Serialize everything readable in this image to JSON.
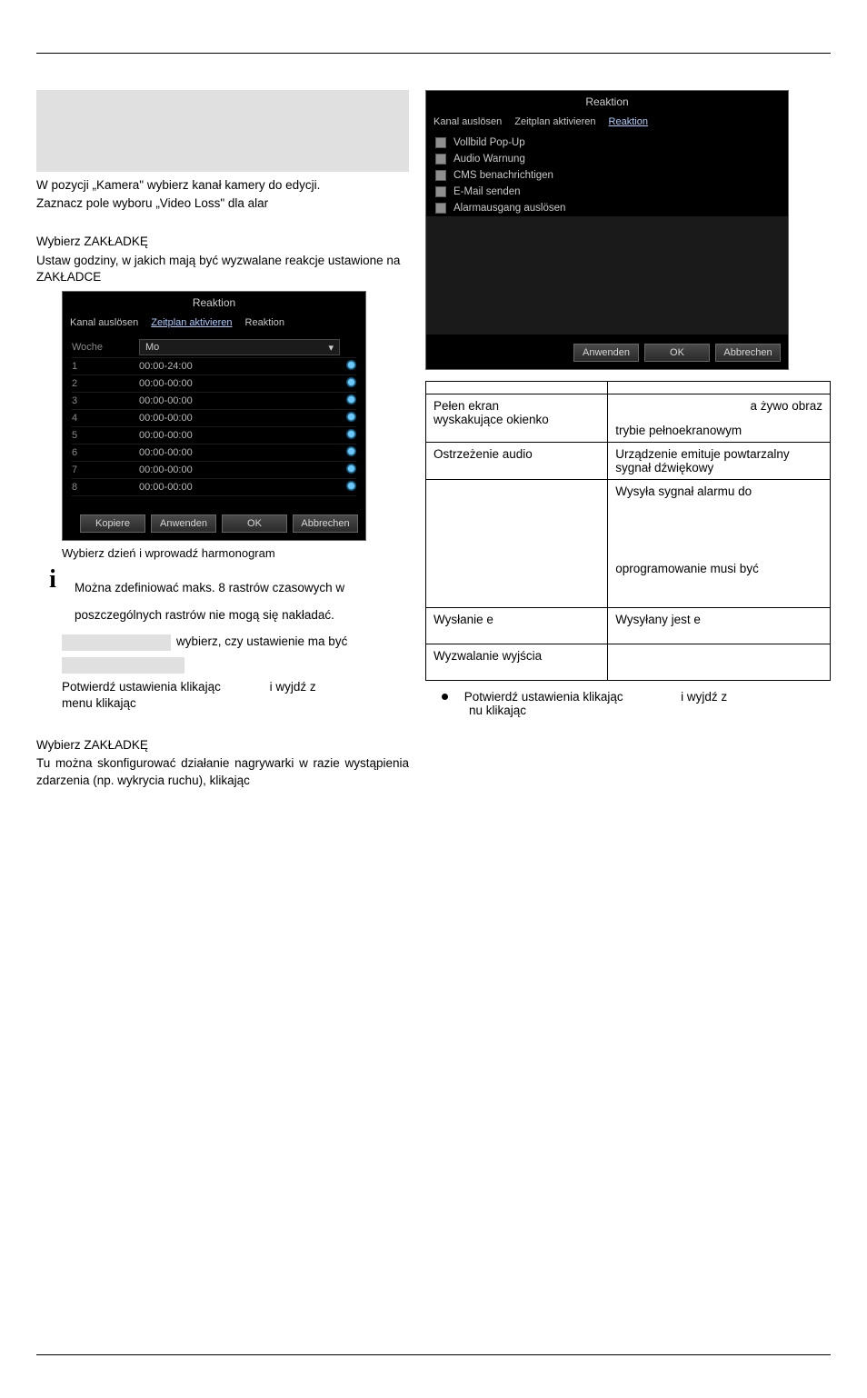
{
  "left": {
    "intro_text_1": "W pozycji „Kamera\" wybierz kanał kamery do edycji.",
    "intro_text_2": "Zaznacz pole wyboru „Video Loss\" dla alar",
    "section1_title": "Wybierz ZAKŁADKĘ",
    "section1_text": "Ustaw godziny, w jakich mają być wyzwalane reakcje ustawione na ZAKŁADCE",
    "reaction_dialog": {
      "title": "Reaktion",
      "tabs": {
        "t1": "Kanal auslösen",
        "t2": "Zeitplan aktivieren",
        "t3": "Reaktion"
      },
      "active_tab_index": 1,
      "woche_label": "Woche",
      "day_select_value": "Mo",
      "rows": [
        {
          "idx": "1",
          "time": "00:00-24:00"
        },
        {
          "idx": "2",
          "time": "00:00-00:00"
        },
        {
          "idx": "3",
          "time": "00:00-00:00"
        },
        {
          "idx": "4",
          "time": "00:00-00:00"
        },
        {
          "idx": "5",
          "time": "00:00-00:00"
        },
        {
          "idx": "6",
          "time": "00:00-00:00"
        },
        {
          "idx": "7",
          "time": "00:00-00:00"
        },
        {
          "idx": "8",
          "time": "00:00-00:00"
        }
      ],
      "buttons": {
        "copy": "Kopiere",
        "apply": "Anwenden",
        "ok": "OK",
        "cancel": "Abbrechen"
      }
    },
    "caption_schedule": "Wybierz dzień i wprowadź harmonogram",
    "info_text_1": "Można zdefiniować maks. 8 rastrów czasowych w",
    "info_text_2": "poszczególnych rastrów nie mogą się nakładać.",
    "row_choose": "wybierz, czy ustawienie ma być",
    "confirm_row_a": "Potwierdź ustawienia klikając",
    "confirm_row_b": "i wyjdź z",
    "confirm_row_c": "menu klikając",
    "section2_title": "Wybierz ZAKŁADKĘ",
    "section2_text": "Tu można skonfigurować działanie nagrywarki w razie wystąpienia zdarzenia (np. wykrycia ruchu), klikając"
  },
  "right": {
    "reaction_dialog": {
      "title": "Reaktion",
      "tabs": {
        "t1": "Kanal auslösen",
        "t2": "Zeitplan aktivieren",
        "t3": "Reaktion"
      },
      "active_tab_index": 2,
      "checkboxes": [
        "Vollbild Pop-Up",
        "Audio Warnung",
        "CMS benachrichtigen",
        "E-Mail senden",
        "Alarmausgang auslösen"
      ],
      "buttons": {
        "apply": "Anwenden",
        "ok": "OK",
        "cancel": "Abbrechen"
      }
    },
    "table": {
      "rows": [
        {
          "c1a": "Pełen ekran",
          "c1b": "wyskakujące okienko",
          "c2a": "a żywo obraz",
          "c2b": "trybie pełnoekranowym"
        },
        {
          "c1": "Ostrzeżenie audio",
          "c2": "Urządzenie emituje powtarzalny sygnał dźwiękowy"
        },
        {
          "c1": "",
          "c2a": "Wysyła sygnał alarmu do",
          "c2b": "oprogramowanie musi być"
        },
        {
          "c1": "Wysłanie e",
          "c2": "Wysyłany jest e"
        },
        {
          "c1": "Wyzwalanie wyjścia",
          "c2": ""
        }
      ]
    },
    "bullet_a": "Potwierdź ustawienia klikając",
    "bullet_b": "i wyjdź z",
    "bullet_c": "nu klikając"
  }
}
